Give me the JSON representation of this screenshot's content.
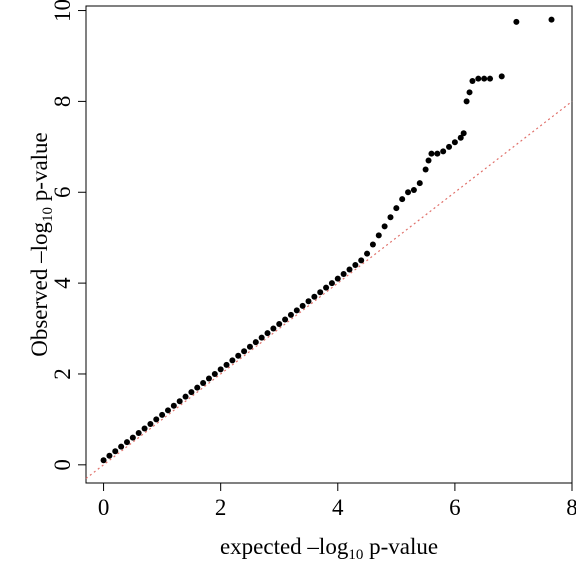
{
  "chart_data": {
    "type": "scatter",
    "title": "",
    "xlabel": {
      "pre": "expected –log",
      "sub": "10",
      "post": " p-value"
    },
    "ylabel": {
      "pre": "Observed –log",
      "sub": "10",
      "post": " p-value"
    },
    "xlim": [
      -0.3,
      8
    ],
    "ylim": [
      -0.4,
      10.1
    ],
    "xticks": [
      0,
      2,
      4,
      6,
      8
    ],
    "yticks": [
      0,
      2,
      4,
      6,
      8,
      10
    ],
    "grid": false,
    "legend": "none",
    "point_color": "#000000",
    "reference_line": {
      "style": "dotted",
      "color": "#e0706a",
      "slope": 1,
      "intercept": 0,
      "x": [
        -0.3,
        8
      ]
    },
    "series": [
      {
        "x": [
          0,
          0.1,
          0.2,
          0.3,
          0.4,
          0.5,
          0.6,
          0.7,
          0.8,
          0.9,
          1.0,
          1.1,
          1.2,
          1.3,
          1.4,
          1.5,
          1.6,
          1.7,
          1.8,
          1.9,
          2.0,
          2.1,
          2.2,
          2.3,
          2.4,
          2.5,
          2.6,
          2.7,
          2.8,
          2.9,
          3.0,
          3.1,
          3.2,
          3.3,
          3.4,
          3.5,
          3.6,
          3.7,
          3.8,
          3.9,
          4.0,
          4.1,
          4.2,
          4.3,
          4.4,
          4.5,
          4.6,
          4.7,
          4.8,
          4.9,
          5.0,
          5.1,
          5.2,
          5.3,
          5.4,
          5.5,
          5.55,
          5.6,
          5.7,
          5.8,
          5.9,
          6.0,
          6.1,
          6.15,
          6.2,
          6.25,
          6.3,
          6.4,
          6.5,
          6.6,
          6.8,
          7.05,
          7.65
        ],
        "y": [
          0.1,
          0.2,
          0.3,
          0.4,
          0.5,
          0.6,
          0.7,
          0.8,
          0.9,
          1.0,
          1.1,
          1.2,
          1.3,
          1.4,
          1.5,
          1.6,
          1.7,
          1.8,
          1.9,
          2.0,
          2.1,
          2.2,
          2.3,
          2.4,
          2.5,
          2.6,
          2.7,
          2.8,
          2.9,
          3.0,
          3.1,
          3.2,
          3.3,
          3.4,
          3.5,
          3.6,
          3.7,
          3.8,
          3.9,
          4.0,
          4.1,
          4.2,
          4.3,
          4.4,
          4.5,
          4.65,
          4.85,
          5.05,
          5.25,
          5.45,
          5.65,
          5.85,
          6.0,
          6.05,
          6.2,
          6.5,
          6.7,
          6.85,
          6.85,
          6.9,
          7.0,
          7.1,
          7.2,
          7.3,
          8.0,
          8.2,
          8.45,
          8.5,
          8.5,
          8.5,
          8.55,
          9.75,
          9.8
        ]
      }
    ]
  }
}
